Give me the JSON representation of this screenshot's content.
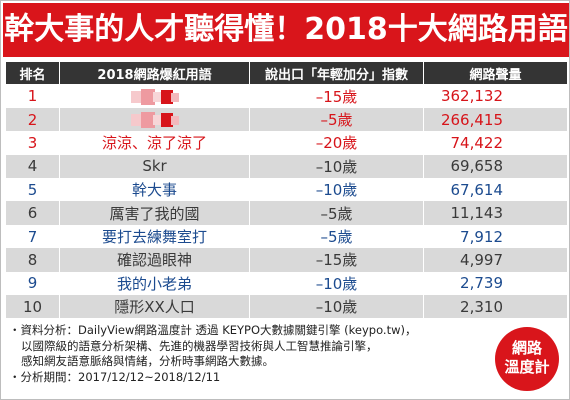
{
  "banner": {
    "title": "幹大事的人才聽得懂！2018十大網路用語"
  },
  "chart_data": {
    "type": "table",
    "title": "幹大事的人才聽得懂！2018十大網路用語",
    "columns": [
      "排名",
      "2018網路爆紅用語",
      "說出口「年輕加分」指數",
      "網路聲量"
    ],
    "rows": [
      {
        "rank": "1",
        "term": "",
        "age": "–15歲",
        "volume": "362,132",
        "color": "#d7141a",
        "blurred": true
      },
      {
        "rank": "2",
        "term": "",
        "age": "–5歲",
        "volume": "266,415",
        "color": "#d7141a",
        "blurred": true
      },
      {
        "rank": "3",
        "term": "涼涼、涼了涼了",
        "age": "–20歲",
        "volume": "74,422",
        "color": "#d7141a",
        "blurred": false
      },
      {
        "rank": "4",
        "term": "Skr",
        "age": "–10歲",
        "volume": "69,658",
        "color": "#3a3a3a",
        "blurred": false
      },
      {
        "rank": "5",
        "term": "幹大事",
        "age": "–10歲",
        "volume": "67,614",
        "color": "#1c4b8f",
        "blurred": false
      },
      {
        "rank": "6",
        "term": "厲害了我的國",
        "age": "–5歲",
        "volume": "11,143",
        "color": "#3a3a3a",
        "blurred": false
      },
      {
        "rank": "7",
        "term": "要打去練舞室打",
        "age": "–5歲",
        "volume": "7,912",
        "color": "#1c4b8f",
        "blurred": false
      },
      {
        "rank": "8",
        "term": "確認過眼神",
        "age": "–15歲",
        "volume": "4,997",
        "color": "#3a3a3a",
        "blurred": false
      },
      {
        "rank": "9",
        "term": "我的小老弟",
        "age": "–10歲",
        "volume": "2,739",
        "color": "#1c4b8f",
        "blurred": false
      },
      {
        "rank": "10",
        "term": "隱形XX人口",
        "age": "–10歲",
        "volume": "2,310",
        "color": "#3a3a3a",
        "blurred": false
      }
    ]
  },
  "notes": {
    "line1": "・資料分析：DailyView網路溫度計 透過 KEYPO大數據關鍵引擎 (keypo.tw)，",
    "line2": "以國際級的語意分析架構、先進的機器學習技術與人工智慧推論引擎，",
    "line3": "感知網友語意脈絡與情緒，分析時事網路大數據。",
    "line4": "・分析期間：2017/12/12~2018/12/11"
  },
  "logo": {
    "line1": "網路",
    "line2": "溫度計"
  }
}
